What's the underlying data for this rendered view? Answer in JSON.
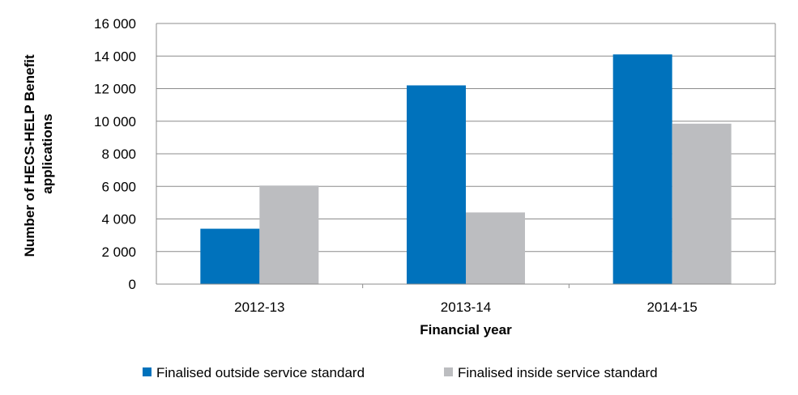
{
  "chart_data": {
    "type": "bar",
    "categories": [
      "2012-13",
      "2013-14",
      "2014-15"
    ],
    "series": [
      {
        "name": "Finalised outside service standard",
        "values": [
          3400,
          12200,
          14100
        ],
        "color": "#0072bc"
      },
      {
        "name": "Finalised inside service standard",
        "values": [
          6050,
          4400,
          9850
        ],
        "color": "#bcbdc0"
      }
    ],
    "xlabel": "Financial year",
    "ylabel_lines": [
      "Number of HECS-HELP Benefit",
      "applications"
    ],
    "ylim": [
      0,
      16000
    ],
    "yticks": [
      0,
      2000,
      4000,
      6000,
      8000,
      10000,
      12000,
      14000,
      16000
    ],
    "ytick_labels": [
      "0",
      "2 000",
      "4 000",
      "6 000",
      "8 000",
      "10 000",
      "12 000",
      "14 000",
      "16 000"
    ],
    "grid": true,
    "legend_position": "bottom"
  }
}
